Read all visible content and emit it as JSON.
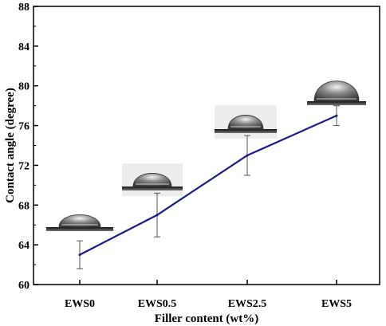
{
  "chart_data": {
    "type": "line",
    "categories": [
      "EWS0",
      "EWS0.5",
      "EWS2.5",
      "EWS5"
    ],
    "series": [
      {
        "values": [
          63,
          67,
          73,
          77
        ],
        "error": [
          1.4,
          2.2,
          2.0,
          1.0
        ],
        "color": "#1c1c8c"
      }
    ],
    "xlabel": "Filler content (wt%)",
    "ylabel": "Contact angle (degree)",
    "ylim": [
      60,
      88
    ],
    "yticks": [
      60,
      64,
      68,
      72,
      76,
      80,
      84,
      88
    ],
    "grid": false,
    "legend": "none",
    "annotations": [
      "water droplet images above each data point"
    ]
  }
}
